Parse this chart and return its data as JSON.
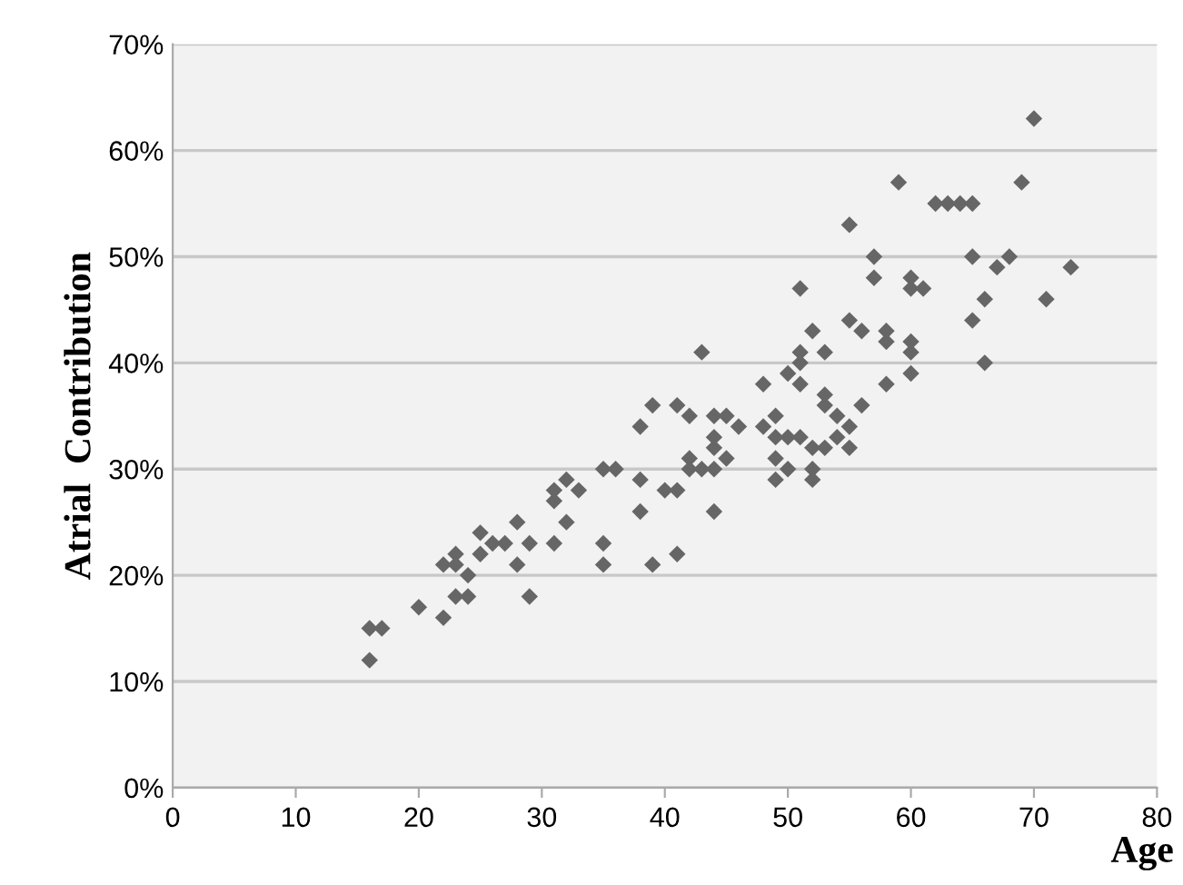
{
  "chart_data": {
    "type": "scatter",
    "xlabel": "Age",
    "ylabel": "Atrial  Contribution",
    "marker": "diamond",
    "grid": "y",
    "xlim": [
      0,
      80
    ],
    "xticks": [
      0,
      10,
      20,
      30,
      40,
      50,
      60,
      70,
      80
    ],
    "ylim": [
      0,
      70
    ],
    "yticks": [
      {
        "value": 0,
        "label": "0%"
      },
      {
        "value": 10,
        "label": "10%"
      },
      {
        "value": 20,
        "label": "20%"
      },
      {
        "value": 30,
        "label": "30%"
      },
      {
        "value": 40,
        "label": "40%"
      },
      {
        "value": 50,
        "label": "50%"
      },
      {
        "value": 60,
        "label": "60%"
      },
      {
        "value": 70,
        "label": "70%"
      }
    ],
    "series": [
      {
        "color": "#666666",
        "x": [
          16,
          16,
          17,
          20,
          22,
          22,
          23,
          23,
          23,
          24,
          24,
          25,
          25,
          26,
          27,
          28,
          28,
          29,
          29,
          31,
          31,
          31,
          32,
          32,
          33,
          35,
          35,
          35,
          36,
          38,
          38,
          38,
          39,
          39,
          40,
          41,
          41,
          41,
          42,
          42,
          42,
          43,
          43,
          44,
          44,
          44,
          44,
          44,
          45,
          45,
          46,
          48,
          48,
          49,
          49,
          49,
          49,
          50,
          50,
          50,
          51,
          51,
          51,
          51,
          51,
          52,
          52,
          52,
          52,
          53,
          53,
          53,
          53,
          54,
          54,
          55,
          55,
          55,
          55,
          56,
          56,
          57,
          57,
          58,
          58,
          58,
          59,
          60,
          60,
          60,
          60,
          60,
          61,
          62,
          63,
          64,
          65,
          65,
          65,
          66,
          66,
          67,
          68,
          69,
          70,
          71,
          73
        ],
        "values": [
          12,
          15,
          15,
          17,
          16,
          21,
          22,
          18,
          21,
          18,
          20,
          24,
          22,
          23,
          23,
          21,
          25,
          18,
          23,
          23,
          27,
          28,
          25,
          29,
          28,
          30,
          23,
          21,
          30,
          26,
          29,
          34,
          36,
          21,
          28,
          22,
          36,
          28,
          35,
          31,
          30,
          30,
          41,
          33,
          32,
          30,
          26,
          35,
          31,
          35,
          34,
          34,
          38,
          35,
          31,
          29,
          33,
          30,
          33,
          39,
          40,
          47,
          41,
          33,
          38,
          32,
          30,
          29,
          43,
          37,
          36,
          32,
          41,
          33,
          35,
          34,
          32,
          44,
          53,
          43,
          36,
          50,
          48,
          43,
          42,
          38,
          57,
          48,
          47,
          42,
          41,
          39,
          47,
          55,
          55,
          55,
          55,
          50,
          44,
          46,
          40,
          49,
          50,
          57,
          63,
          46,
          49
        ]
      }
    ]
  }
}
